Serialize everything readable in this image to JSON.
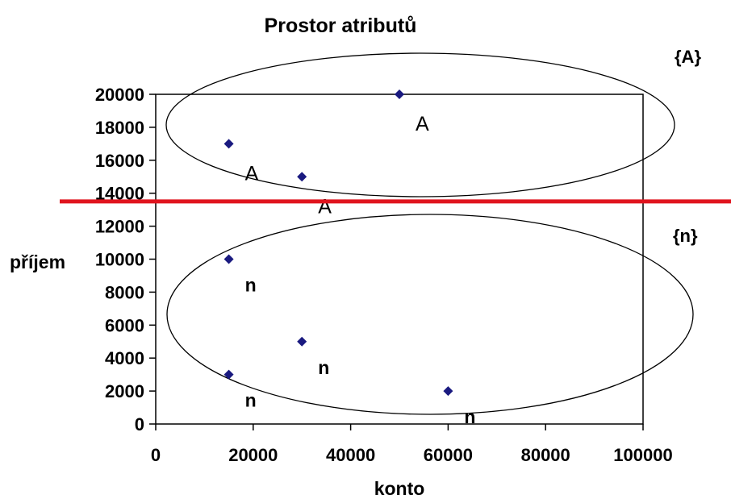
{
  "chart_data": {
    "type": "scatter",
    "title": "Prostor atributů",
    "xlabel": "konto",
    "ylabel": "příjem",
    "xlim": [
      0,
      100000
    ],
    "ylim": [
      0,
      20000
    ],
    "x_ticks": [
      0,
      20000,
      40000,
      60000,
      80000,
      100000
    ],
    "y_ticks": [
      0,
      2000,
      4000,
      6000,
      8000,
      10000,
      12000,
      14000,
      16000,
      18000,
      20000
    ],
    "x_tick_labels": [
      "0",
      "20000",
      "40000",
      "60000",
      "80000",
      "100000"
    ],
    "y_tick_labels": [
      "0",
      "2000",
      "4000",
      "6000",
      "8000",
      "10000",
      "12000",
      "14000",
      "16000",
      "18000",
      "20000"
    ],
    "grid": false,
    "marker_color": "#1a1a80",
    "points": [
      {
        "x": 50000,
        "y": 20000,
        "label": "A"
      },
      {
        "x": 15000,
        "y": 17000,
        "label": "A"
      },
      {
        "x": 30000,
        "y": 15000,
        "label": "A"
      },
      {
        "x": 15000,
        "y": 10000,
        "label": "n"
      },
      {
        "x": 30000,
        "y": 5000,
        "label": "n"
      },
      {
        "x": 15000,
        "y": 3000,
        "label": "n"
      },
      {
        "x": 60000,
        "y": 2000,
        "label": "n"
      }
    ],
    "groups": [
      {
        "label": "{A}"
      },
      {
        "label": "{n}"
      }
    ],
    "separator": {
      "y": 13500,
      "color": "#e0141e"
    }
  }
}
